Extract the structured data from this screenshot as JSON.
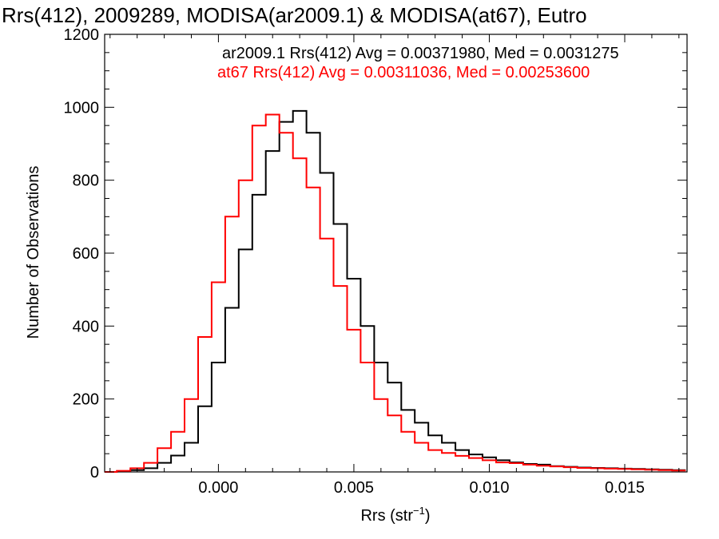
{
  "chart_data": {
    "type": "line",
    "title": "Rrs(412), 2009289, MODISA(ar2009.1) & MODISA(at67), Eutro",
    "xlabel": "Rrs (str",
    "xlabel_sup": "−1",
    "xlabel_close": ")",
    "ylabel": "Number of Observations",
    "xlim": [
      -0.0042,
      0.0173
    ],
    "ylim": [
      0,
      1200
    ],
    "x_ticks": [
      0.0,
      0.005,
      0.01,
      0.015
    ],
    "x_tick_labels": [
      "0.000",
      "0.005",
      "0.010",
      "0.015"
    ],
    "y_ticks": [
      0,
      200,
      400,
      600,
      800,
      1000,
      1200
    ],
    "y_tick_labels": [
      "0",
      "200",
      "400",
      "600",
      "800",
      "1000",
      "1200"
    ],
    "grid": false,
    "legend_position": "top-right",
    "series": [
      {
        "name": "ar2009.1",
        "legend": "ar2009.1 Rrs(412) Avg = 0.00371980, Med = 0.0031275",
        "color": "#000000",
        "x": [
          -0.004,
          -0.0035,
          -0.003,
          -0.0025,
          -0.002,
          -0.0015,
          -0.001,
          -0.0005,
          0.0,
          0.0005,
          0.001,
          0.0015,
          0.002,
          0.0025,
          0.003,
          0.0035,
          0.004,
          0.0045,
          0.005,
          0.0055,
          0.006,
          0.0065,
          0.007,
          0.0075,
          0.008,
          0.0085,
          0.009,
          0.0095,
          0.01,
          0.0105,
          0.011,
          0.0115,
          0.012,
          0.0125,
          0.013,
          0.0135,
          0.014,
          0.0145,
          0.015,
          0.0155,
          0.016,
          0.0165,
          0.017
        ],
        "values": [
          0,
          2,
          5,
          10,
          25,
          45,
          80,
          180,
          300,
          450,
          610,
          760,
          880,
          960,
          990,
          930,
          820,
          680,
          530,
          400,
          300,
          245,
          170,
          135,
          100,
          80,
          60,
          48,
          40,
          32,
          26,
          22,
          20,
          16,
          14,
          12,
          11,
          10,
          9,
          8,
          7,
          6,
          5
        ]
      },
      {
        "name": "at67",
        "legend": "at67 Rrs(412) Avg = 0.00311036, Med = 0.00253600",
        "color": "#ff0000",
        "x": [
          -0.004,
          -0.0035,
          -0.003,
          -0.0025,
          -0.002,
          -0.0015,
          -0.001,
          -0.0005,
          0.0,
          0.0005,
          0.001,
          0.0015,
          0.002,
          0.0025,
          0.003,
          0.0035,
          0.004,
          0.0045,
          0.005,
          0.0055,
          0.006,
          0.0065,
          0.007,
          0.0075,
          0.008,
          0.0085,
          0.009,
          0.0095,
          0.01,
          0.0105,
          0.011,
          0.0115,
          0.012,
          0.0125,
          0.013,
          0.0135,
          0.014,
          0.0145,
          0.015,
          0.0155,
          0.016,
          0.0165,
          0.017
        ],
        "values": [
          0,
          3,
          10,
          25,
          65,
          110,
          200,
          370,
          520,
          700,
          800,
          950,
          980,
          930,
          860,
          780,
          640,
          510,
          390,
          300,
          200,
          155,
          110,
          80,
          60,
          52,
          44,
          38,
          32,
          26,
          24,
          20,
          17,
          15,
          13,
          11,
          10,
          9,
          8,
          7,
          6,
          5,
          4
        ]
      }
    ]
  }
}
